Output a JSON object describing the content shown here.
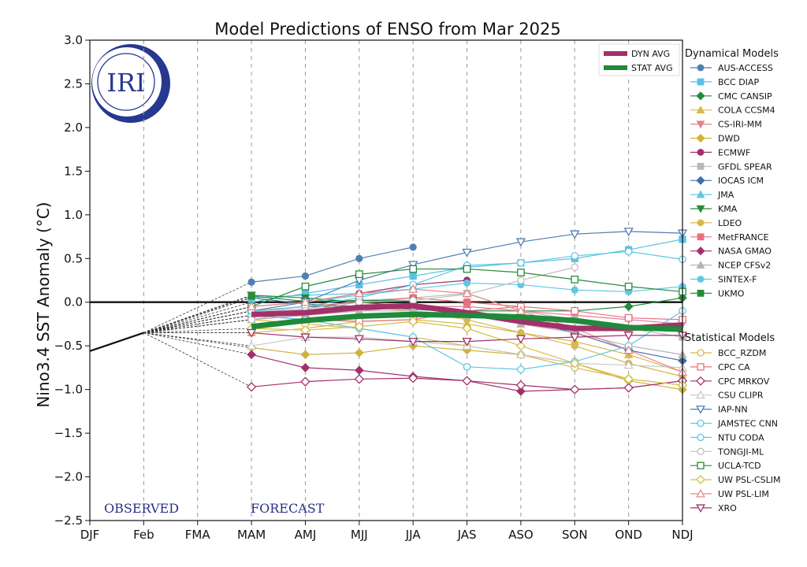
{
  "chart_data": {
    "type": "line",
    "title": "Model Predictions of ENSO from Mar 2025",
    "ylabel": "Nino3.4 SST Anomaly (°C)",
    "xlabel": "",
    "categories": [
      "DJF",
      "Feb",
      "FMA",
      "MAM",
      "AMJ",
      "MJJ",
      "JJA",
      "JAS",
      "ASO",
      "SON",
      "OND",
      "NDJ"
    ],
    "ylim": [
      -2.5,
      3.0
    ],
    "yticks": [
      "3.0",
      "2.5",
      "2.0",
      "1.5",
      "1.0",
      "0.5",
      "0.0",
      "−0.5",
      "−1.0",
      "−1.5",
      "−2.0",
      "−2.5"
    ],
    "ytick_values": [
      3.0,
      2.5,
      2.0,
      1.5,
      1.0,
      0.5,
      0.0,
      -0.5,
      -1.0,
      -1.5,
      -2.0,
      -2.5
    ],
    "grid": "x",
    "observed_label": "OBSERVED",
    "forecast_label": "FORECAST",
    "logo_text": "IRI",
    "observed": {
      "x": [
        0,
        1
      ],
      "values": [
        -0.56,
        -0.35
      ]
    },
    "averages": [
      {
        "name": "DYN AVG",
        "color": "#a3306a",
        "values": [
          -0.14,
          -0.12,
          -0.06,
          -0.04,
          -0.12,
          -0.22,
          -0.3,
          -0.3,
          -0.26
        ]
      },
      {
        "name": "STAT AVG",
        "color": "#1e8a3a",
        "values": [
          -0.28,
          -0.21,
          -0.16,
          -0.14,
          -0.15,
          -0.17,
          -0.21,
          -0.29,
          -0.31
        ]
      }
    ],
    "dynamical_title": "Dynamical Models",
    "statistical_title": "Statistical Models",
    "dynamical": [
      {
        "name": "AUS-ACCESS",
        "color": "#4f7fb0",
        "marker": "circle",
        "filled": true,
        "values": [
          0.23,
          0.3,
          0.5,
          0.63
        ]
      },
      {
        "name": "BCC DIAP",
        "color": "#5bc0e6",
        "marker": "square",
        "filled": true,
        "values": [
          0.0,
          0.1,
          0.2,
          0.3,
          0.4,
          0.45,
          0.5,
          0.6,
          0.72
        ]
      },
      {
        "name": "CMC CANSIP",
        "color": "#228b3c",
        "marker": "diamond",
        "filled": true,
        "values": [
          -0.1,
          -0.05,
          -0.05,
          -0.08,
          -0.1,
          -0.1,
          -0.1,
          -0.05,
          0.05
        ]
      },
      {
        "name": "COLA CCSM4",
        "color": "#d8b84c",
        "marker": "triangle-up",
        "filled": true,
        "values": [
          -0.35,
          -0.3,
          -0.22,
          -0.2,
          -0.25,
          -0.35,
          -0.45,
          -0.6,
          -0.8
        ]
      },
      {
        "name": "CS-IRI-MM",
        "color": "#e57f8e",
        "marker": "triangle-down",
        "filled": true,
        "values": [
          -0.2,
          -0.15,
          -0.1,
          -0.05,
          -0.05,
          -0.1,
          -0.15,
          -0.2,
          -0.25
        ]
      },
      {
        "name": "DWD",
        "color": "#d0b33f",
        "marker": "diamond",
        "filled": true,
        "values": [
          -0.52,
          -0.6,
          -0.58,
          -0.5,
          -0.55,
          -0.6,
          -0.7,
          -0.9,
          -1.0
        ]
      },
      {
        "name": "ECMWF",
        "color": "#a3306a",
        "marker": "circle",
        "filled": true,
        "values": [
          -0.05,
          0.0,
          0.1,
          0.2,
          0.25
        ]
      },
      {
        "name": "GFDL SPEAR",
        "color": "#b9b9b9",
        "marker": "square",
        "filled": true,
        "values": [
          -0.1,
          -0.08,
          0.02,
          0.05,
          0.1,
          -0.1,
          -0.2,
          -0.3,
          -0.4
        ]
      },
      {
        "name": "IOCAS ICM",
        "color": "#3f6fa8",
        "marker": "diamond",
        "filled": true,
        "values": [
          0.05,
          -0.02,
          -0.05,
          -0.08,
          -0.12,
          -0.2,
          -0.35,
          -0.55,
          -0.67
        ]
      },
      {
        "name": "JMA",
        "color": "#5ec8e4",
        "marker": "triangle-up",
        "filled": true,
        "values": [
          0.05,
          0.08,
          0.1,
          0.15
        ]
      },
      {
        "name": "KMA",
        "color": "#2a8a3a",
        "marker": "triangle-down",
        "filled": true,
        "values": [
          0.08,
          0.05,
          0.0,
          -0.05
        ]
      },
      {
        "name": "LDEO",
        "color": "#d4b94f",
        "marker": "circle",
        "filled": true,
        "values": [
          -0.15,
          -0.1,
          -0.05,
          -0.1,
          -0.2,
          -0.35,
          -0.5,
          -0.7,
          -0.85
        ]
      },
      {
        "name": "MetFRANCE",
        "color": "#e87080",
        "marker": "square",
        "filled": true,
        "values": [
          -0.1,
          -0.05,
          0.0,
          0.05,
          0.0,
          -0.05
        ]
      },
      {
        "name": "NASA GMAO",
        "color": "#a3306a",
        "marker": "diamond",
        "filled": true,
        "values": [
          -0.6,
          -0.75,
          -0.78,
          -0.85,
          -0.9,
          -1.02,
          -1.0,
          -0.98,
          -0.9
        ]
      },
      {
        "name": "NCEP CFSv2",
        "color": "#b3b3b3",
        "marker": "triangle-up",
        "filled": true,
        "values": [
          -0.2,
          -0.15,
          -0.1,
          -0.1,
          -0.15,
          -0.25,
          -0.35,
          -0.5,
          -0.6
        ]
      },
      {
        "name": "SINTEX-F",
        "color": "#5ec8e4",
        "marker": "circle",
        "filled": true,
        "values": [
          -0.05,
          0.0,
          0.08,
          0.15,
          0.22,
          0.2,
          0.14,
          0.12,
          0.18
        ]
      },
      {
        "name": "UKMO",
        "color": "#2a8a3a",
        "marker": "square",
        "filled": true,
        "values": [
          0.07,
          0.01,
          0.02,
          0.02
        ]
      }
    ],
    "statistical": [
      {
        "name": "BCC_RZDM",
        "color": "#d8b84c",
        "marker": "circle",
        "filled": false,
        "values": [
          -0.2,
          -0.25,
          -0.3,
          -0.4,
          -0.5,
          -0.6,
          -0.75,
          -0.88,
          -0.95
        ]
      },
      {
        "name": "CPC CA",
        "color": "#e87080",
        "marker": "square",
        "filled": false,
        "values": [
          -0.15,
          -0.2,
          -0.22,
          -0.2,
          -0.1,
          -0.05,
          -0.1,
          -0.18,
          -0.2
        ]
      },
      {
        "name": "CPC MRKOV",
        "color": "#a3306a",
        "marker": "diamond",
        "filled": false,
        "values": [
          -0.97,
          -0.91,
          -0.88,
          -0.87,
          -0.9,
          -0.95,
          -1.0,
          -0.98,
          -0.9
        ]
      },
      {
        "name": "CSU CLIPR",
        "color": "#c8c8c8",
        "marker": "triangle-up",
        "filled": false,
        "values": [
          -0.5,
          -0.4,
          -0.4,
          -0.45,
          -0.5,
          -0.6,
          -0.7,
          -0.72,
          -0.75
        ]
      },
      {
        "name": "IAP-NN",
        "color": "#4f7fb0",
        "marker": "triangle-down",
        "filled": false,
        "values": [
          -0.1,
          0.0,
          0.25,
          0.43,
          0.57,
          0.69,
          0.78,
          0.81,
          0.79
        ]
      },
      {
        "name": "JAMSTEC CNN",
        "color": "#5ec8e4",
        "marker": "circle",
        "filled": false,
        "values": [
          -0.15,
          -0.2,
          -0.3,
          -0.4,
          -0.74,
          -0.77,
          -0.68,
          -0.5,
          -0.1
        ]
      },
      {
        "name": "NTU CODA",
        "color": "#5ec8e4",
        "marker": "circle",
        "filled": false,
        "values": [
          -0.1,
          -0.05,
          0.05,
          0.2,
          0.42,
          0.45,
          0.53,
          0.58,
          0.49
        ]
      },
      {
        "name": "TONGJI-ML",
        "color": "#c0c0c0",
        "marker": "circle",
        "filled": false,
        "values": [
          -0.2,
          -0.1,
          0.0,
          0.02,
          0.09,
          0.25,
          0.4
        ]
      },
      {
        "name": "UCLA-TCD",
        "color": "#2a8a3a",
        "marker": "square",
        "filled": false,
        "values": [
          -0.05,
          0.18,
          0.32,
          0.38,
          0.38,
          0.34,
          0.26,
          0.18,
          0.12
        ]
      },
      {
        "name": "UW PSL-CSLIM",
        "color": "#d4c13f",
        "marker": "diamond",
        "filled": false,
        "values": [
          -0.3,
          -0.32,
          -0.28,
          -0.22,
          -0.3,
          -0.5,
          -0.7,
          -0.88,
          -0.95
        ]
      },
      {
        "name": "UW PSL-LIM",
        "color": "#e88a8a",
        "marker": "triangle-up",
        "filled": false,
        "values": [
          -0.05,
          0.0,
          0.1,
          0.15,
          0.1,
          -0.1,
          -0.3,
          -0.55,
          -0.8
        ]
      },
      {
        "name": "XRO",
        "color": "#a3306a",
        "marker": "triangle-down",
        "filled": false,
        "values": [
          -0.35,
          -0.4,
          -0.42,
          -0.45,
          -0.45,
          -0.42,
          -0.4,
          -0.38,
          -0.38
        ]
      }
    ]
  }
}
